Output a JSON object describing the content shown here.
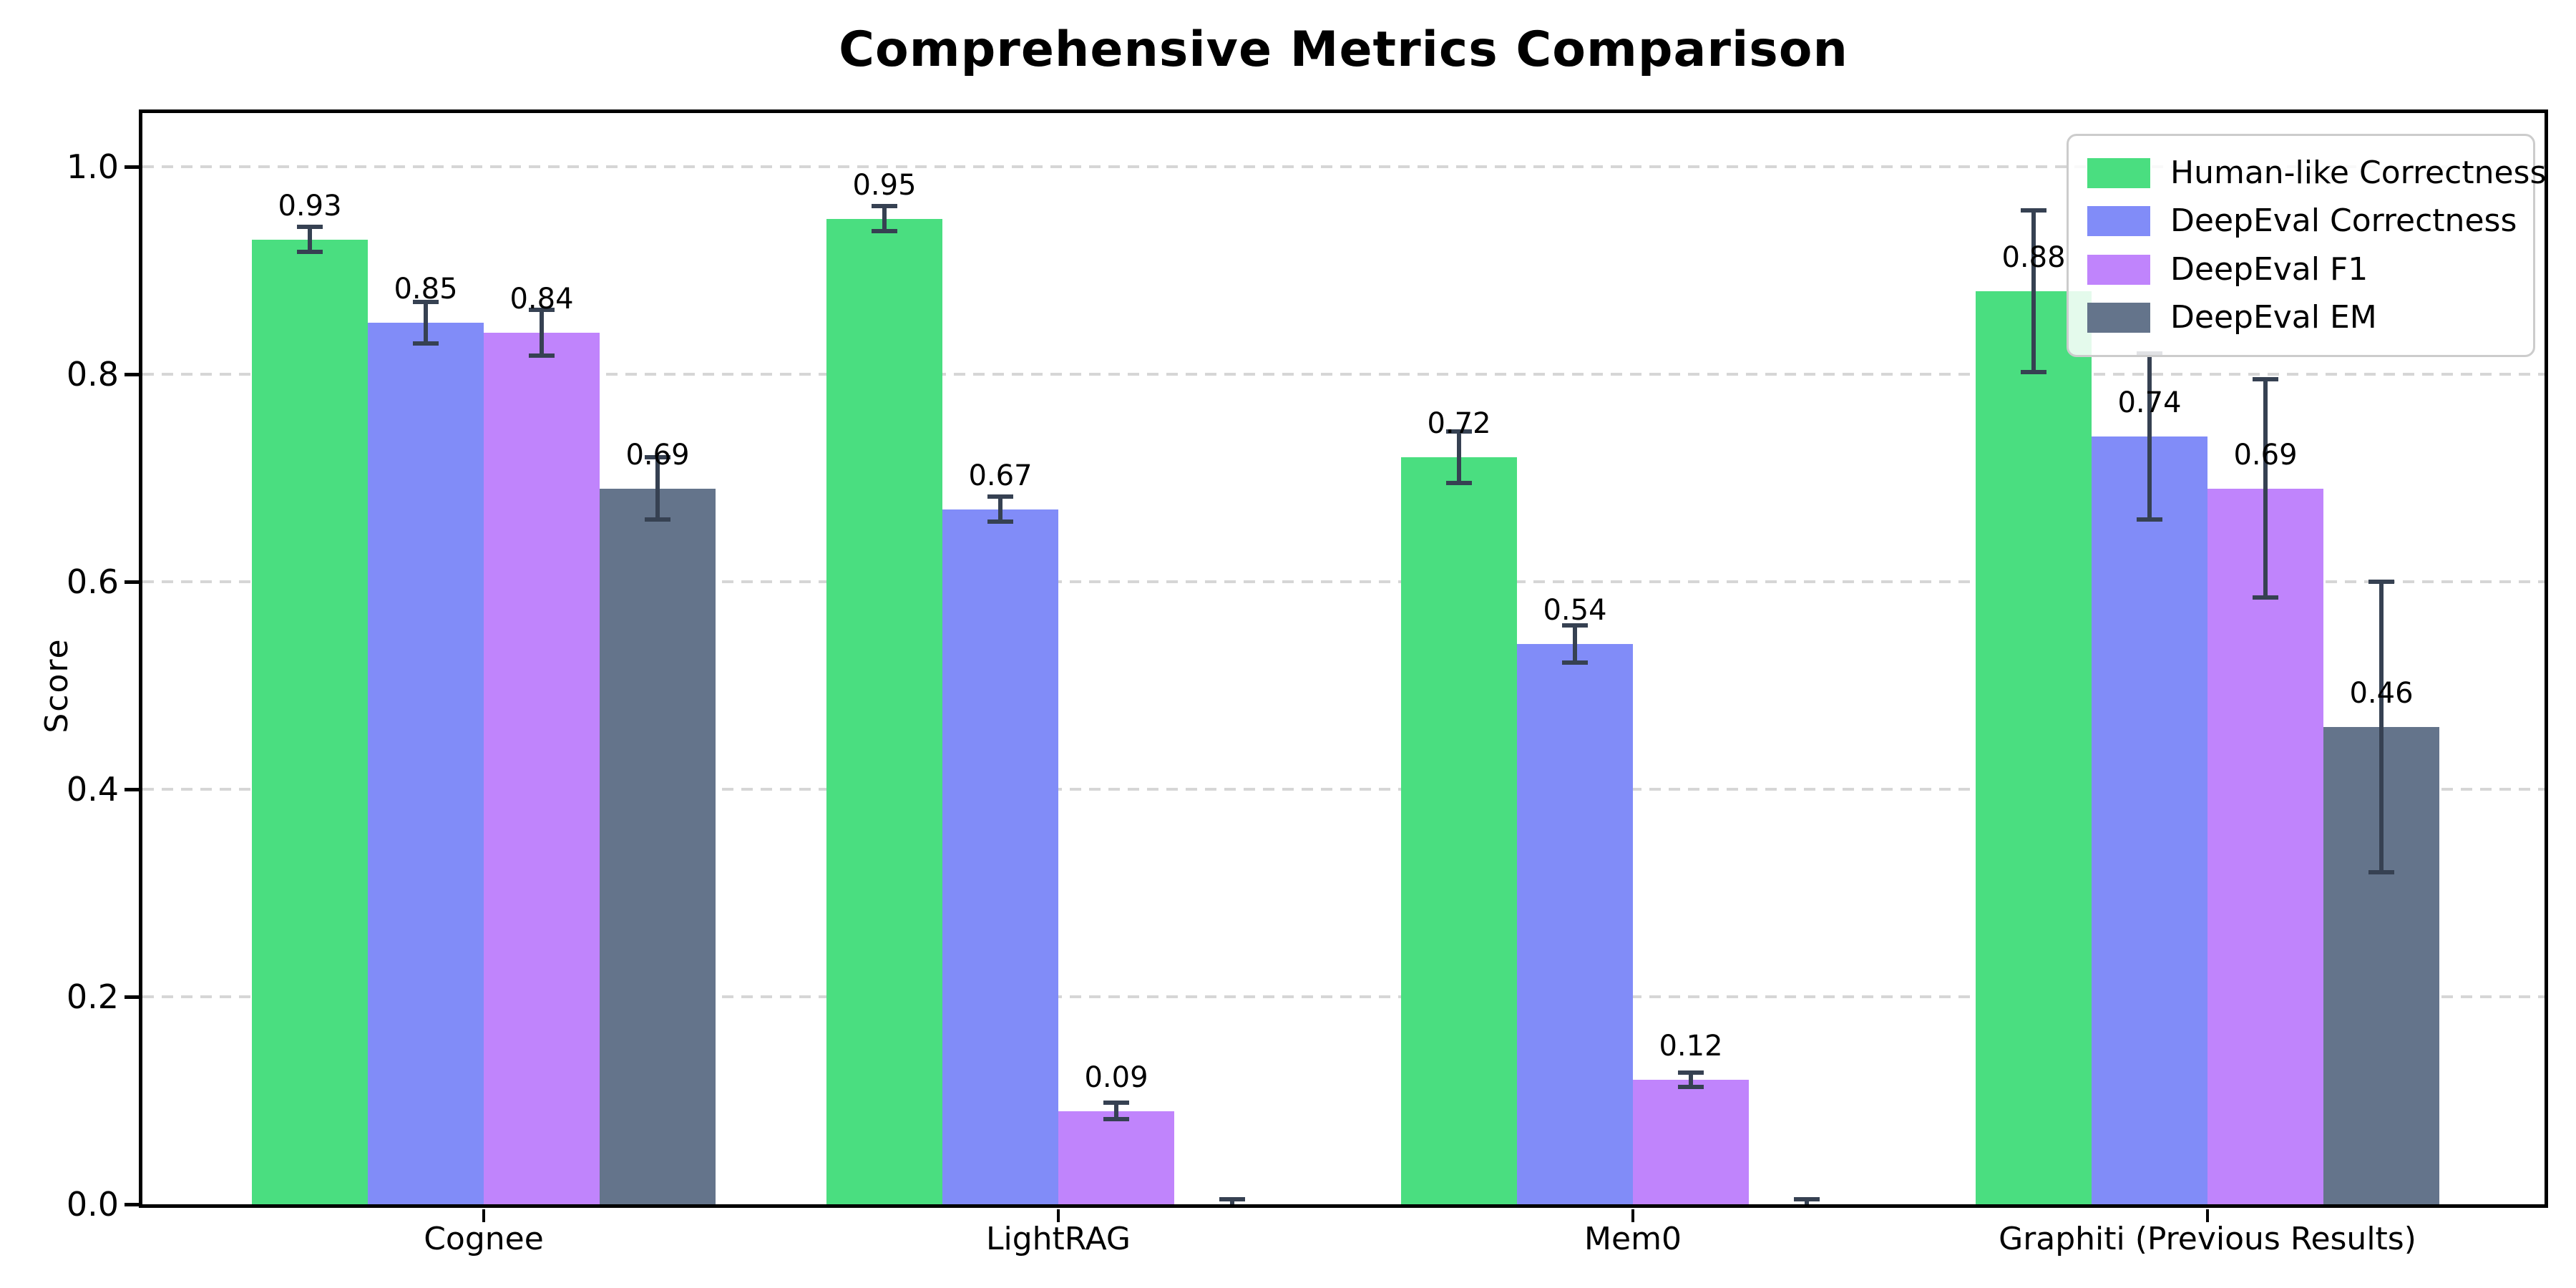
{
  "chart_data": {
    "type": "bar",
    "title": "Comprehensive Metrics Comparison",
    "ylabel": "Score",
    "xlabel": "",
    "categories": [
      "Cognee",
      "LightRAG",
      "Mem0",
      "Graphiti (Previous Results)"
    ],
    "series": [
      {
        "name": "Human-like Correctness",
        "color": "#4ade80",
        "values": [
          0.93,
          0.95,
          0.72,
          0.88
        ],
        "errors": [
          0.012,
          0.012,
          0.025,
          0.078
        ],
        "labels": [
          "0.93",
          "0.95",
          "0.72",
          "0.88"
        ]
      },
      {
        "name": "DeepEval Correctness",
        "color": "#818cf8",
        "values": [
          0.85,
          0.67,
          0.54,
          0.74
        ],
        "errors": [
          0.02,
          0.012,
          0.018,
          0.08
        ],
        "labels": [
          "0.85",
          "0.67",
          "0.54",
          "0.74"
        ]
      },
      {
        "name": "DeepEval F1",
        "color": "#c084fc",
        "values": [
          0.84,
          0.09,
          0.12,
          0.69
        ],
        "errors": [
          0.022,
          0.008,
          0.007,
          0.105
        ],
        "labels": [
          "0.84",
          "0.09",
          "0.12",
          "0.69"
        ]
      },
      {
        "name": "DeepEval EM",
        "color": "#64748b",
        "values": [
          0.69,
          0.0,
          0.0,
          0.46
        ],
        "errors": [
          0.03,
          0.005,
          0.005,
          0.14
        ],
        "labels": [
          "0.69",
          "",
          "",
          "0.46"
        ]
      }
    ],
    "yticks": [
      "0.0",
      "0.2",
      "0.4",
      "0.6",
      "0.8",
      "1.0"
    ],
    "ytick_values": [
      0.0,
      0.2,
      0.4,
      0.6,
      0.8,
      1.0
    ],
    "ylim": [
      0,
      1.05
    ],
    "grid": "horizontal-dashed",
    "grid_color": "#d6d6d6",
    "error_bar_color": "#364152",
    "legend_position": "upper right",
    "background_color": "#ffffff"
  }
}
